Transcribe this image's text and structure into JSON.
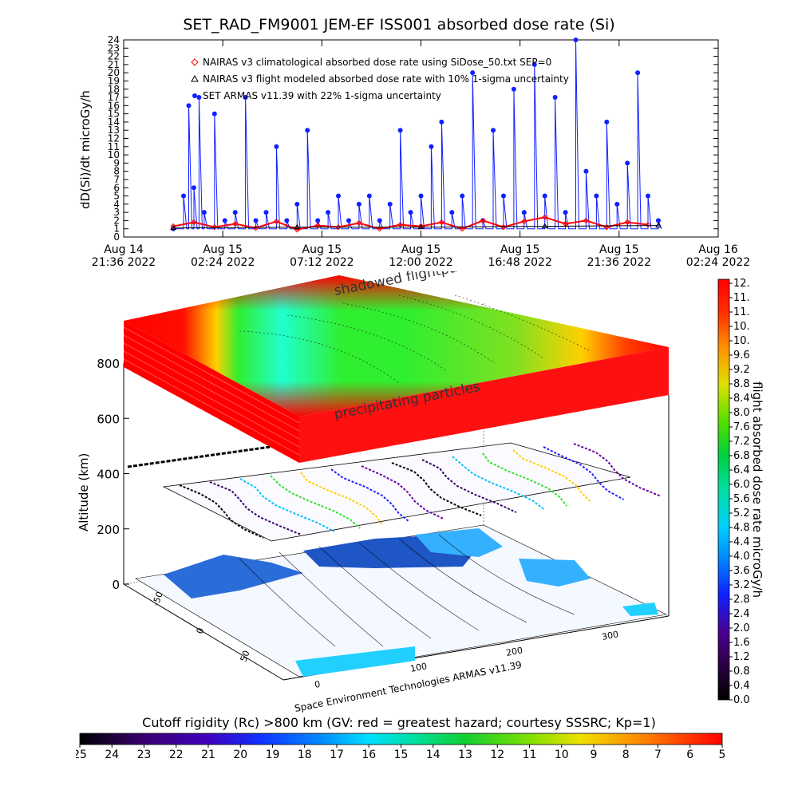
{
  "chart_data": [
    {
      "type": "line",
      "title": "SET_RAD_FM9001  JEM-EF ISS001 absorbed dose rate (Si)",
      "ylabel": "dD(Si)/dt microGy/h",
      "ylim": [
        0,
        24
      ],
      "yticks": [
        0,
        1,
        2,
        3,
        4,
        5,
        6,
        7,
        8,
        9,
        10,
        11,
        12,
        13,
        14,
        15,
        16,
        17,
        18,
        19,
        20,
        21,
        22,
        23,
        24
      ],
      "xlim": [
        "2022-08-14 21:36",
        "2022-08-16 02:24"
      ],
      "xticks": [
        {
          "t": "2022-08-14 21:36",
          "label": "Aug 14\n21:36 2022"
        },
        {
          "t": "2022-08-15 02:24",
          "label": "Aug 15\n02:24 2022"
        },
        {
          "t": "2022-08-15 07:12",
          "label": "Aug 15\n07:12 2022"
        },
        {
          "t": "2022-08-15 12:00",
          "label": "Aug 15\n12:00 2022"
        },
        {
          "t": "2022-08-15 16:48",
          "label": "Aug 15\n16:48 2022"
        },
        {
          "t": "2022-08-15 21:36",
          "label": "Aug 15\n21:36 2022"
        },
        {
          "t": "2022-08-16 02:24",
          "label": "Aug 16\n02:24 2022"
        }
      ],
      "legend": [
        {
          "label": "NAIRAS v3 climatological absorbed dose rate using SiDose_50.txt SEP=0",
          "color": "#ff0000",
          "symbol": "diamond"
        },
        {
          "label": "NAIRAS v3 flight modeled absorbed dose rate with 10% 1-sigma uncertainty",
          "color": "#000000",
          "symbol": "triangle"
        },
        {
          "label": "SET ARMAS v11.39 with 22% 1-sigma uncertainty",
          "color": "#1020ff",
          "symbol": "dot"
        }
      ],
      "series": [
        {
          "name": "SET ARMAS v11.39 with 22% 1-sigma uncertainty",
          "color": "#1020ff",
          "x": [
            "2022-08-15 00:00",
            "2022-08-15 00:30",
            "2022-08-15 00:45",
            "2022-08-15 01:00",
            "2022-08-15 01:15",
            "2022-08-15 01:30",
            "2022-08-15 02:00",
            "2022-08-15 02:30",
            "2022-08-15 03:00",
            "2022-08-15 03:30",
            "2022-08-15 04:00",
            "2022-08-15 04:30",
            "2022-08-15 05:00",
            "2022-08-15 05:30",
            "2022-08-15 06:00",
            "2022-08-15 06:30",
            "2022-08-15 07:00",
            "2022-08-15 07:30",
            "2022-08-15 08:00",
            "2022-08-15 08:30",
            "2022-08-15 09:00",
            "2022-08-15 09:30",
            "2022-08-15 10:00",
            "2022-08-15 10:30",
            "2022-08-15 11:00",
            "2022-08-15 11:30",
            "2022-08-15 12:00",
            "2022-08-15 12:30",
            "2022-08-15 13:00",
            "2022-08-15 13:30",
            "2022-08-15 14:00",
            "2022-08-15 14:30",
            "2022-08-15 15:00",
            "2022-08-15 15:30",
            "2022-08-15 16:00",
            "2022-08-15 16:30",
            "2022-08-15 17:00",
            "2022-08-15 17:30",
            "2022-08-15 18:00",
            "2022-08-15 18:30",
            "2022-08-15 19:00",
            "2022-08-15 19:30",
            "2022-08-15 20:00",
            "2022-08-15 20:30",
            "2022-08-15 21:00",
            "2022-08-15 21:30",
            "2022-08-15 22:00",
            "2022-08-15 22:30",
            "2022-08-15 23:00",
            "2022-08-15 23:30"
          ],
          "y": [
            1,
            5,
            16,
            6,
            17,
            3,
            15,
            2,
            3,
            17,
            2,
            3,
            11,
            2,
            4,
            13,
            2,
            3,
            5,
            2,
            4,
            5,
            2,
            4,
            13,
            3,
            5,
            11,
            14,
            3,
            5,
            20,
            2,
            13,
            5,
            18,
            3,
            21,
            5,
            17,
            3,
            24,
            8,
            5,
            14,
            4,
            9,
            20,
            5,
            2
          ]
        },
        {
          "name": "NAIRAS v3 climatological absorbed dose rate using SiDose_50.txt SEP=0",
          "color": "#ff0000",
          "x": [
            "2022-08-15 00:00",
            "2022-08-15 01:00",
            "2022-08-15 02:00",
            "2022-08-15 03:00",
            "2022-08-15 04:00",
            "2022-08-15 05:00",
            "2022-08-15 06:00",
            "2022-08-15 07:00",
            "2022-08-15 08:00",
            "2022-08-15 09:00",
            "2022-08-15 10:00",
            "2022-08-15 11:00",
            "2022-08-15 12:00",
            "2022-08-15 13:00",
            "2022-08-15 14:00",
            "2022-08-15 15:00",
            "2022-08-15 16:00",
            "2022-08-15 17:00",
            "2022-08-15 18:00",
            "2022-08-15 19:00",
            "2022-08-15 20:00",
            "2022-08-15 21:00",
            "2022-08-15 22:00",
            "2022-08-15 23:00"
          ],
          "y": [
            1.3,
            1.8,
            1.2,
            1.6,
            1.1,
            1.9,
            0.9,
            1.4,
            1.2,
            1.7,
            1.0,
            1.5,
            1.3,
            1.8,
            1.0,
            2.0,
            1.2,
            1.9,
            2.4,
            1.6,
            2.0,
            1.2,
            1.8,
            1.5
          ]
        },
        {
          "name": "NAIRAS v3 flight modeled absorbed dose rate with 10% 1-sigma uncertainty",
          "color": "#000000",
          "x": [
            "2022-08-15 00:00",
            "2022-08-15 06:00",
            "2022-08-15 12:00",
            "2022-08-15 18:00",
            "2022-08-15 23:30"
          ],
          "y": [
            1.1,
            1.2,
            1.2,
            1.3,
            1.4
          ]
        }
      ]
    },
    {
      "type": "heatmap",
      "ylabel": "Altitude (km)",
      "zticks": [
        0,
        200,
        400,
        600,
        800
      ],
      "latitude_ticks": [
        -50,
        0,
        50
      ],
      "longitude_ticks": [
        0,
        100,
        200,
        300
      ],
      "annotations": [
        "shadowed flightpaths",
        "precipitating particles"
      ],
      "credit": "Space Environment Technologies ARMAS v11.39"
    },
    {
      "type": "colorbar",
      "orientation": "vertical",
      "label": "flight absorbed dose rate microGy/h",
      "range": [
        0.0,
        12.0
      ],
      "tick_labels": [
        "12.",
        "11.",
        "11.",
        "10.",
        "10.",
        "9.6",
        "9.2",
        "8.8",
        "8.4",
        "8.0",
        "7.6",
        "7.2",
        "6.8",
        "6.4",
        "6.0",
        "5.6",
        "5.2",
        "4.8",
        "4.4",
        "4.0",
        "3.6",
        "3.2",
        "2.8",
        "2.4",
        "2.0",
        "1.6",
        "1.2",
        "0.8",
        "0.4",
        "0.0"
      ]
    },
    {
      "type": "colorbar",
      "orientation": "horizontal",
      "label": "Cutoff rigidity (Rc) >800 km (GV: red = greatest hazard; courtesy SSSRC; Kp=1)",
      "range": [
        25,
        5
      ],
      "tick_labels": [
        "25",
        "24",
        "23",
        "22",
        "21",
        "20",
        "19",
        "18",
        "17",
        "16",
        "15",
        "14",
        "13",
        "12",
        "11",
        "10",
        "9",
        "8",
        "7",
        "6",
        "5"
      ]
    }
  ]
}
